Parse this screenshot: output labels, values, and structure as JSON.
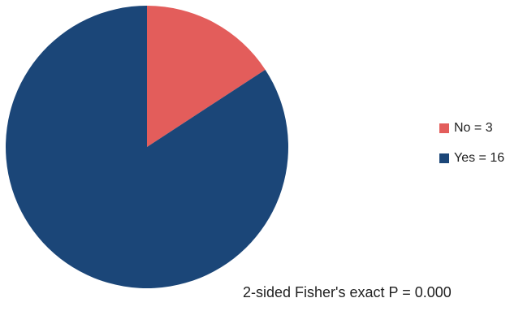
{
  "chart_data": {
    "type": "pie",
    "title": "",
    "slices": [
      {
        "label": "No",
        "value": 3,
        "color": "#E35D5B",
        "legend_text": "No = 3"
      },
      {
        "label": "Yes",
        "value": 16,
        "color": "#1B4678",
        "legend_text": "Yes = 16"
      }
    ],
    "start_angle_deg": 0,
    "direction": "clockwise",
    "legend_placement": "right",
    "annotation": "2-sided Fisher's exact P = 0.000"
  }
}
